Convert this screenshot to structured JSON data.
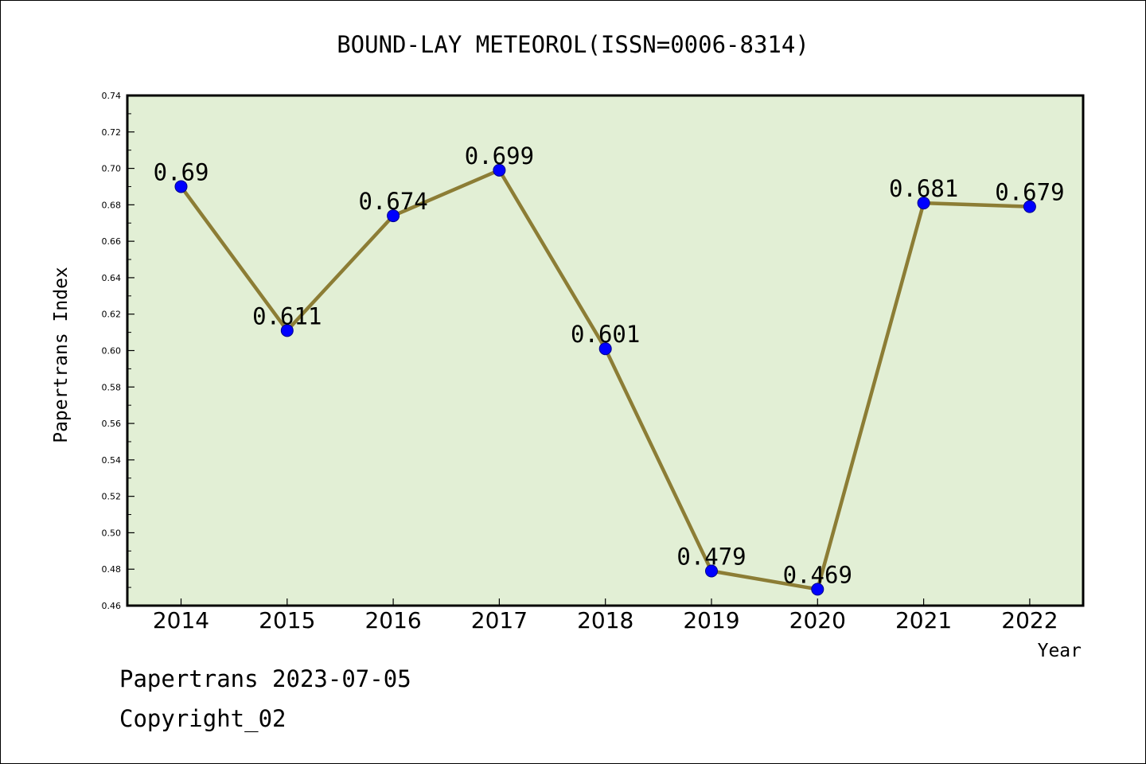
{
  "chart_data": {
    "type": "line",
    "title": "BOUND-LAY METEOROL(ISSN=0006-8314)",
    "xlabel": "Year",
    "ylabel": "Papertrans Index",
    "categories": [
      "2014",
      "2015",
      "2016",
      "2017",
      "2018",
      "2019",
      "2020",
      "2021",
      "2022"
    ],
    "values": [
      0.69,
      0.611,
      0.674,
      0.699,
      0.601,
      0.479,
      0.469,
      0.681,
      0.679
    ],
    "data_labels": [
      "0.69",
      "0.611",
      "0.674",
      "0.699",
      "0.601",
      "0.479",
      "0.469",
      "0.681",
      "0.679"
    ],
    "ylim": [
      0.46,
      0.74
    ],
    "yticks": [
      "0.46",
      "0.48",
      "0.50",
      "0.52",
      "0.54",
      "0.56",
      "0.58",
      "0.60",
      "0.62",
      "0.64",
      "0.66",
      "0.68",
      "0.70",
      "0.72",
      "0.74"
    ],
    "grid": false,
    "colors": {
      "plot_background": "#e2efd5",
      "line": "#8c7d35",
      "marker": "#0000ff"
    }
  },
  "footer": {
    "line1": "Papertrans 2023-07-05",
    "line2": "Copyright_02"
  }
}
